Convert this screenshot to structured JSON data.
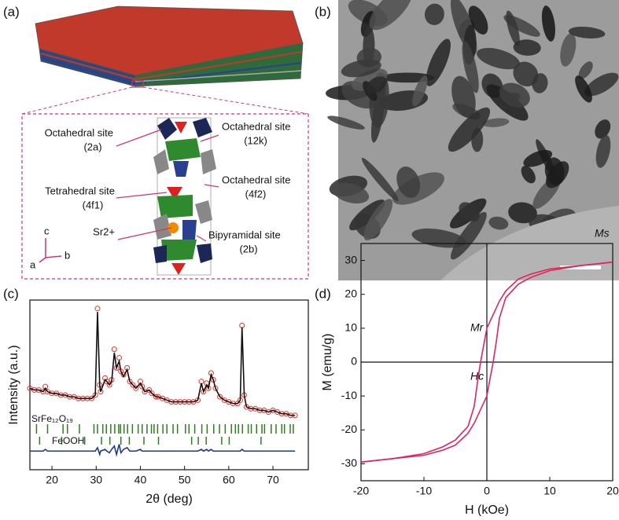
{
  "panels": {
    "a": {
      "label": "(a)",
      "sites": [
        {
          "name": "Octahedral site",
          "site": "(2a)"
        },
        {
          "name": "Octahedral site",
          "site": "(12k)"
        },
        {
          "name": "Tetrahedral site",
          "site": "(4f1)"
        },
        {
          "name": "Octahedral site",
          "site": "(4f2)"
        },
        {
          "name": "Bipyramidal site",
          "site": "(2b)"
        }
      ],
      "ion": "Sr2+",
      "axes": [
        "c",
        "a",
        "b"
      ]
    },
    "b": {
      "label": "(b)"
    }
  },
  "chart_data": [
    {
      "type": "line",
      "label": "(c)",
      "x_label": "2θ (deg)",
      "y_label": "Intensity (a.u.)",
      "xlim": [
        15,
        78
      ],
      "xticks": [
        20,
        30,
        40,
        50,
        60,
        70
      ],
      "ylim": [
        0,
        100
      ],
      "x": [
        15,
        16,
        17,
        18,
        18.5,
        19,
        20,
        21,
        22,
        23,
        24,
        25,
        26,
        27,
        28,
        29,
        29.8,
        30.3,
        30.8,
        31,
        32,
        32.4,
        33,
        33.5,
        34.1,
        34.6,
        35.2,
        35.6,
        36.2,
        37,
        37.6,
        38.3,
        39,
        40,
        40.4,
        41,
        42,
        42.6,
        43.5,
        44,
        45,
        46,
        47,
        48,
        49,
        50,
        51,
        52,
        53,
        53.8,
        54.3,
        55,
        55.4,
        56,
        56.5,
        57,
        58,
        59,
        60,
        61,
        62,
        62.6,
        63,
        63.5,
        64,
        65,
        66,
        67,
        68,
        69,
        70,
        71,
        72,
        73,
        74,
        75
      ],
      "series": [
        {
          "color": "#e8302a",
          "marker": "circle",
          "values": [
            48,
            47,
            47,
            46,
            49,
            46,
            45,
            45,
            44,
            44,
            43,
            43,
            42,
            42,
            42,
            42,
            44,
            95,
            50,
            46,
            54,
            52,
            50,
            53,
            71,
            60,
            66,
            58,
            56,
            60,
            52,
            50,
            48,
            52,
            49,
            46,
            47,
            45,
            43,
            43,
            42,
            41,
            40,
            40,
            40,
            40,
            40,
            40,
            41,
            52,
            46,
            51,
            48,
            57,
            53,
            48,
            43,
            41,
            40,
            39,
            39,
            41,
            85,
            44,
            37,
            36,
            36,
            35,
            35,
            34,
            35,
            34,
            33,
            33,
            32,
            32
          ]
        },
        {
          "color": "#111111",
          "marker": "none",
          "values": [
            48,
            47,
            47,
            46,
            48,
            46,
            45,
            45,
            44,
            44,
            43,
            43,
            42,
            42,
            42,
            42,
            44,
            93,
            50,
            46,
            53,
            52,
            50,
            52,
            69,
            60,
            64,
            58,
            55,
            59,
            52,
            50,
            48,
            51,
            49,
            46,
            47,
            45,
            43,
            43,
            42,
            41,
            40,
            40,
            40,
            40,
            40,
            40,
            41,
            51,
            46,
            50,
            48,
            56,
            53,
            48,
            43,
            41,
            40,
            39,
            39,
            41,
            84,
            44,
            37,
            36,
            36,
            35,
            35,
            34,
            35,
            34,
            33,
            33,
            32,
            32
          ]
        },
        {
          "color": "#1f3a8a",
          "marker": "none",
          "values": [
            11,
            11,
            11,
            11,
            12,
            11,
            11,
            11,
            11,
            11,
            11,
            11,
            11,
            11,
            11,
            11,
            11,
            13,
            9,
            11,
            12,
            11,
            10,
            12,
            14,
            9,
            15,
            10,
            12,
            13,
            11,
            11,
            11,
            12,
            11,
            11,
            11,
            11,
            11,
            11,
            11,
            11,
            11,
            11,
            11,
            11,
            11,
            11,
            11,
            12,
            11,
            12,
            11,
            12,
            11,
            11,
            11,
            11,
            11,
            11,
            11,
            11,
            12,
            11,
            11,
            11,
            11,
            11,
            11,
            11,
            11,
            11,
            11,
            11,
            11,
            11
          ]
        }
      ],
      "reflections": [
        {
          "name": "SrFe₁₂O₁₉",
          "color": "#2e7d1e",
          "positions": [
            16.5,
            19,
            22.5,
            23.5,
            26.2,
            29.5,
            30.3,
            31.5,
            32.3,
            33.3,
            34.2,
            35.1,
            35.5,
            36.3,
            37.1,
            38.2,
            39.5,
            40.4,
            41.5,
            42.5,
            43.1,
            43.9,
            45.1,
            46,
            47.4,
            48.4,
            50.2,
            51,
            52.3,
            53.9,
            55.1,
            56.6,
            57.9,
            59.2,
            60.6,
            61.5,
            62.2,
            63.1,
            64.4,
            65.1,
            66.3,
            67.5,
            68.1,
            69.6,
            70.7,
            72,
            72.6,
            73.9,
            74.6
          ]
        },
        {
          "name": "FeOOH",
          "color": "#2e7d1e",
          "positions": [
            17.2,
            22.2,
            27.4,
            31.2,
            33.1,
            35.6,
            37.5,
            40.8,
            44.1,
            51.6,
            53.1,
            54.9,
            58.4,
            60.1,
            67.3
          ]
        }
      ]
    },
    {
      "type": "line",
      "label": "(d)",
      "x_label": "H (kOe)",
      "y_label": "M (emu/g)",
      "xlim": [
        -20,
        20
      ],
      "xticks": [
        -20,
        -10,
        0,
        10,
        20
      ],
      "ylim": [
        -35,
        35
      ],
      "yticks": [
        -30,
        -20,
        -10,
        0,
        10,
        20,
        30
      ],
      "zero_lines": true,
      "annotations": [
        "Ms",
        "Mr",
        "Hc"
      ],
      "series": [
        {
          "color": "#e0245c",
          "x": [
            20,
            15,
            10,
            7,
            5,
            3,
            2,
            1,
            0,
            -0.5,
            -1,
            -1.5,
            -2,
            -3,
            -5,
            -7,
            -10,
            -15,
            -20
          ],
          "values": [
            29.5,
            28.5,
            27.5,
            26,
            24.5,
            21,
            18,
            14,
            10,
            5,
            0,
            -6,
            -13,
            -19,
            -23,
            -25,
            -27,
            -28.5,
            -29.5
          ]
        },
        {
          "color": "#e0245c",
          "x": [
            -20,
            -15,
            -10,
            -7,
            -5,
            -3,
            -2,
            -1,
            0,
            0.5,
            1,
            1.5,
            2,
            3,
            5,
            7,
            10,
            15,
            20
          ],
          "values": [
            -29.5,
            -28.5,
            -27.5,
            -26,
            -24.5,
            -21,
            -18,
            -14,
            -10,
            -5,
            0,
            6,
            13,
            19,
            23,
            25,
            27,
            28.5,
            29.5
          ]
        }
      ]
    }
  ]
}
